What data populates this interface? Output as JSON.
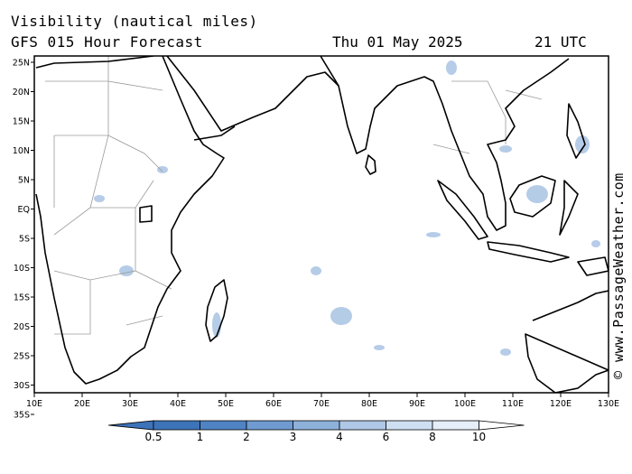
{
  "title_line1": "Visibility (nautical miles)",
  "title_line2": "GFS 015 Hour Forecast",
  "date": "Thu 01 May 2025",
  "time": "21 UTC",
  "credit": "© www.PassageWeather.com",
  "lat_labels": [
    "25N",
    "20N",
    "15N",
    "10N",
    "5N",
    "EQ",
    "5S",
    "10S",
    "15S",
    "20S",
    "25S",
    "30S",
    "35S"
  ],
  "lon_labels": [
    "10E",
    "20E",
    "30E",
    "40E",
    "50E",
    "60E",
    "70E",
    "80E",
    "90E",
    "100E",
    "110E",
    "120E",
    "130E"
  ],
  "legend": {
    "labels": [
      "0.5",
      "1",
      "2",
      "3",
      "4",
      "6",
      "8",
      "10"
    ],
    "colors": [
      "#3d73b8",
      "#4f83c4",
      "#6f9bd0",
      "#8eb1da",
      "#afc8e6",
      "#cfdff2",
      "#e6eef9",
      "#ffffff"
    ]
  }
}
